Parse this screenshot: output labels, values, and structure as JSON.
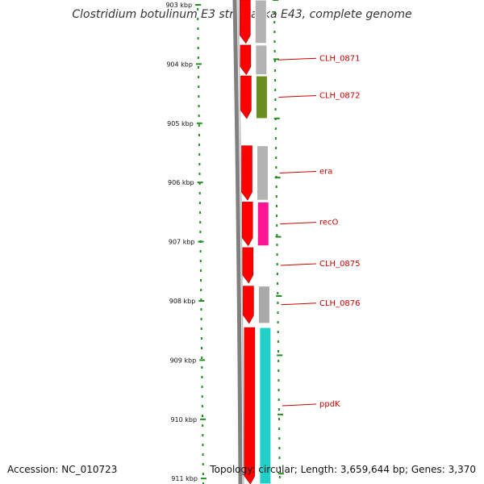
{
  "title": "Clostridium botulinum E3 str. Alaska E43, complete genome",
  "accession": "Accession: NC_010723",
  "summary": "Topology: circular; Length: 3,659,644 bp; Genes: 3,370",
  "colors": {
    "backbone": "#808080",
    "cds": "#ff0000",
    "tick": "#228b22",
    "label": "#cc0000"
  },
  "scale": {
    "unit": "kbp",
    "tick_labels": [
      "903 kbp",
      "904 kbp",
      "905 kbp",
      "906 kbp",
      "907 kbp",
      "908 kbp",
      "909 kbp",
      "910 kbp",
      "911 kbp"
    ],
    "range_kbp": [
      903,
      911
    ]
  },
  "genes": [
    {
      "name": "",
      "start_kbp": 902.9,
      "end_kbp": 903.65,
      "cog_color": "#b3b3b3"
    },
    {
      "name": "CLH_0871",
      "start_kbp": 903.68,
      "end_kbp": 904.18,
      "cog_color": "#b3b3b3"
    },
    {
      "name": "CLH_0872",
      "start_kbp": 904.2,
      "end_kbp": 904.92,
      "cog_color": "#6b8e23"
    },
    {
      "name": "era",
      "start_kbp": 905.38,
      "end_kbp": 906.3,
      "cog_color": "#b3b3b3"
    },
    {
      "name": "recO",
      "start_kbp": 906.33,
      "end_kbp": 907.07,
      "cog_color": "#ff1493"
    },
    {
      "name": "CLH_0875",
      "start_kbp": 907.1,
      "end_kbp": 907.7,
      "cog_color": ""
    },
    {
      "name": "CLH_0876",
      "start_kbp": 907.75,
      "end_kbp": 908.38,
      "cog_color": "#a9a9a9"
    },
    {
      "name": "ppdK",
      "start_kbp": 908.45,
      "end_kbp": 911.2,
      "cog_color": "#20d0c8"
    }
  ]
}
